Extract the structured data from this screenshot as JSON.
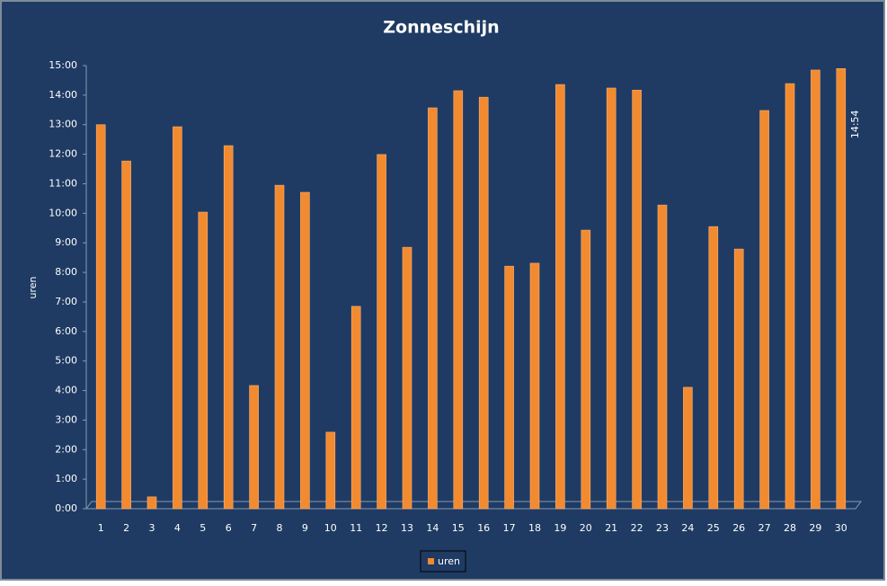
{
  "chart_data": {
    "type": "bar",
    "title": "Zonneschijn",
    "ylabel": "uren",
    "categories": [
      "1",
      "2",
      "3",
      "4",
      "5",
      "6",
      "7",
      "8",
      "9",
      "10",
      "11",
      "12",
      "13",
      "14",
      "15",
      "16",
      "17",
      "18",
      "19",
      "20",
      "21",
      "22",
      "23",
      "24",
      "25",
      "26",
      "27",
      "28",
      "29",
      "30"
    ],
    "series": [
      {
        "name": "uren",
        "color": "#f28a30",
        "values": [
          13.0,
          11.77,
          0.4,
          12.93,
          10.04,
          12.29,
          4.17,
          10.95,
          10.71,
          2.59,
          6.85,
          11.99,
          8.85,
          13.57,
          14.15,
          13.93,
          8.21,
          8.31,
          14.36,
          9.43,
          14.24,
          14.17,
          10.28,
          4.11,
          9.55,
          8.79,
          13.48,
          14.39,
          14.85,
          14.9
        ],
        "value_labels": [
          null,
          null,
          null,
          null,
          null,
          null,
          null,
          null,
          null,
          null,
          null,
          null,
          null,
          null,
          null,
          null,
          null,
          null,
          null,
          null,
          null,
          null,
          null,
          null,
          null,
          null,
          null,
          null,
          null,
          "14:54"
        ]
      }
    ],
    "ylim": [
      0,
      15
    ],
    "yticks": [
      {
        "value": 0,
        "label": "0:00"
      },
      {
        "value": 1,
        "label": "1:00"
      },
      {
        "value": 2,
        "label": "2:00"
      },
      {
        "value": 3,
        "label": "3:00"
      },
      {
        "value": 4,
        "label": "4:00"
      },
      {
        "value": 5,
        "label": "5:00"
      },
      {
        "value": 6,
        "label": "6:00"
      },
      {
        "value": 7,
        "label": "7:00"
      },
      {
        "value": 8,
        "label": "8:00"
      },
      {
        "value": 9,
        "label": "9:00"
      },
      {
        "value": 10,
        "label": "10:00"
      },
      {
        "value": 11,
        "label": "11:00"
      },
      {
        "value": 12,
        "label": "12:00"
      },
      {
        "value": 13,
        "label": "13:00"
      },
      {
        "value": 14,
        "label": "14:00"
      },
      {
        "value": 15,
        "label": "15:00"
      }
    ],
    "grid": false,
    "legend": "bottom"
  }
}
